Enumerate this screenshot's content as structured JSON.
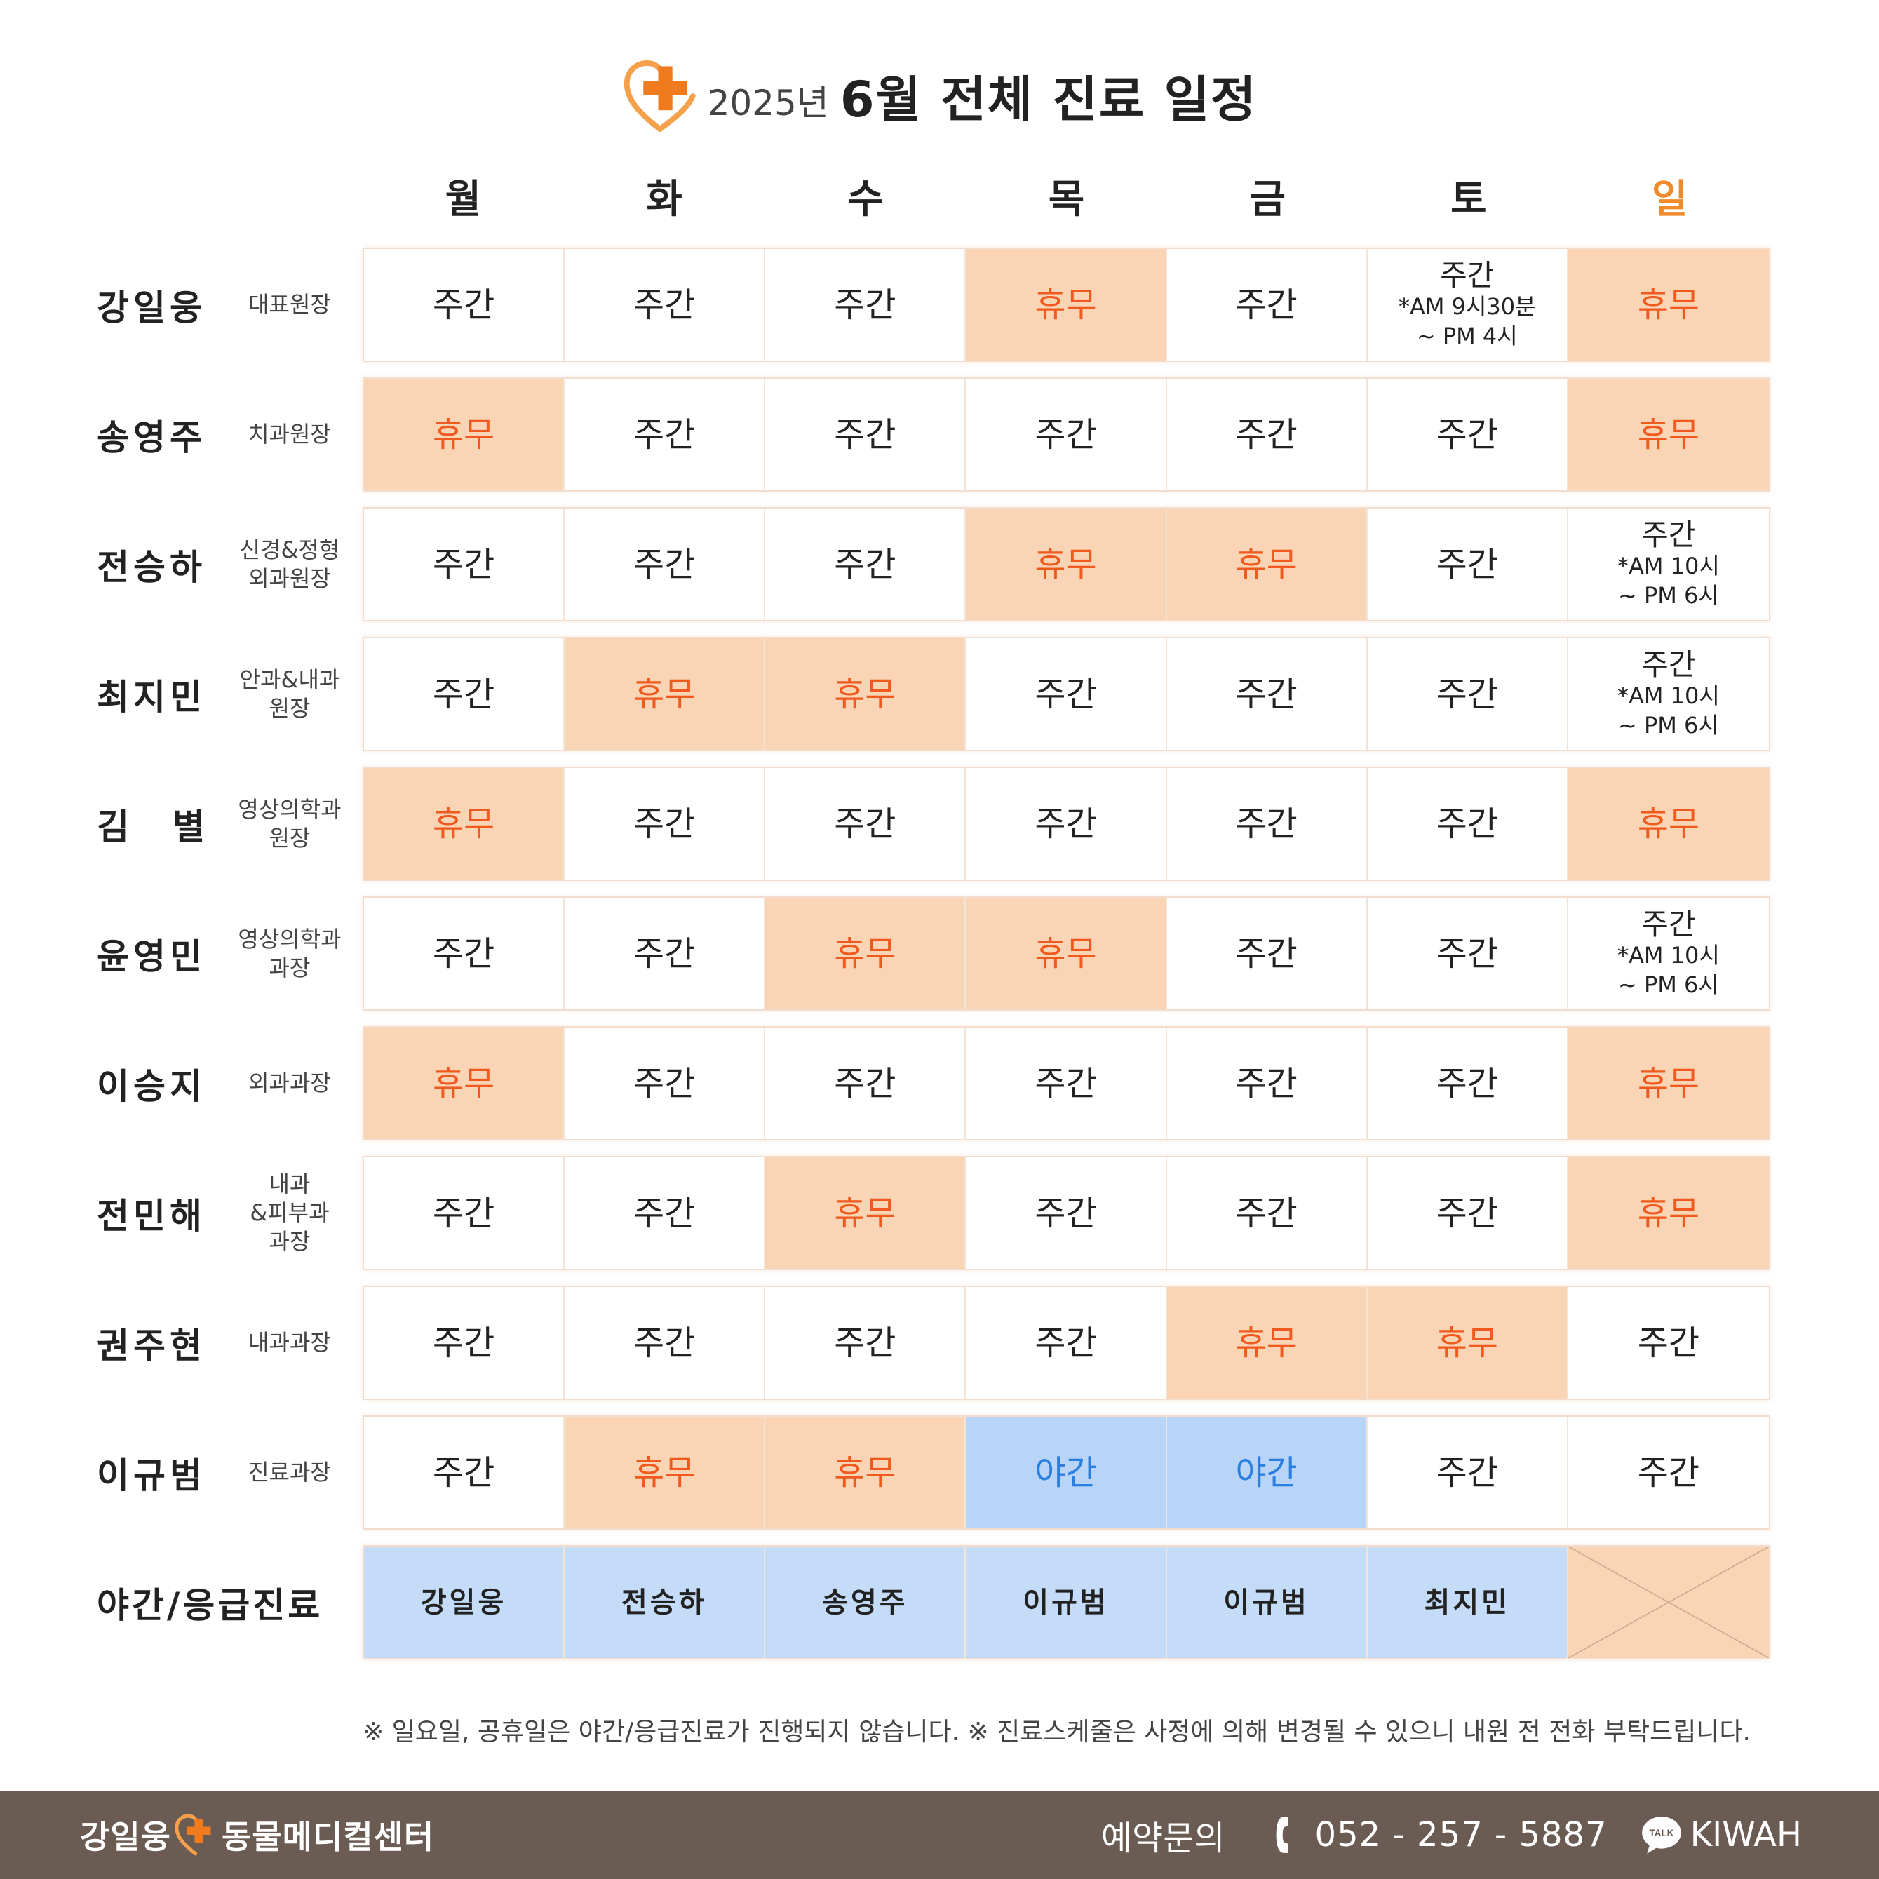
{
  "header": {
    "year": "2025년",
    "title": "6월 전체 진료 일정"
  },
  "days": [
    {
      "label": "월"
    },
    {
      "label": "화"
    },
    {
      "label": "수"
    },
    {
      "label": "목"
    },
    {
      "label": "금"
    },
    {
      "label": "토"
    },
    {
      "label": "일"
    }
  ],
  "rows": [
    {
      "name": "강일웅",
      "role": "대표원장",
      "cells": [
        {
          "main": "주간"
        },
        {
          "main": "주간"
        },
        {
          "main": "주간"
        },
        {
          "main": "휴무"
        },
        {
          "main": "주간"
        },
        {
          "main": "주간",
          "sub": "*AM 9시30분\n~ PM 4시"
        },
        {
          "main": "휴무"
        }
      ]
    },
    {
      "name": "송영주",
      "role": "치과원장",
      "cells": [
        {
          "main": "휴무"
        },
        {
          "main": "주간"
        },
        {
          "main": "주간"
        },
        {
          "main": "주간"
        },
        {
          "main": "주간"
        },
        {
          "main": "주간"
        },
        {
          "main": "휴무"
        }
      ]
    },
    {
      "name": "전승하",
      "role": "신경&정형\n외과원장",
      "cells": [
        {
          "main": "주간"
        },
        {
          "main": "주간"
        },
        {
          "main": "주간"
        },
        {
          "main": "휴무"
        },
        {
          "main": "휴무"
        },
        {
          "main": "주간"
        },
        {
          "main": "주간",
          "sub": "*AM 10시\n~ PM 6시"
        }
      ]
    },
    {
      "name": "최지민",
      "role": "안과&내과\n원장",
      "cells": [
        {
          "main": "주간"
        },
        {
          "main": "휴무"
        },
        {
          "main": "휴무"
        },
        {
          "main": "주간"
        },
        {
          "main": "주간"
        },
        {
          "main": "주간"
        },
        {
          "main": "주간",
          "sub": "*AM 10시\n~ PM 6시"
        }
      ]
    },
    {
      "name": "김　별",
      "role": "영상의학과\n원장",
      "cells": [
        {
          "main": "휴무"
        },
        {
          "main": "주간"
        },
        {
          "main": "주간"
        },
        {
          "main": "주간"
        },
        {
          "main": "주간"
        },
        {
          "main": "주간"
        },
        {
          "main": "휴무"
        }
      ]
    },
    {
      "name": "윤영민",
      "role": "영상의학과\n과장",
      "cells": [
        {
          "main": "주간"
        },
        {
          "main": "주간"
        },
        {
          "main": "휴무"
        },
        {
          "main": "휴무"
        },
        {
          "main": "주간"
        },
        {
          "main": "주간"
        },
        {
          "main": "주간",
          "sub": "*AM 10시\n~ PM 6시"
        }
      ]
    },
    {
      "name": "이승지",
      "role": "외과과장",
      "cells": [
        {
          "main": "휴무"
        },
        {
          "main": "주간"
        },
        {
          "main": "주간"
        },
        {
          "main": "주간"
        },
        {
          "main": "주간"
        },
        {
          "main": "주간"
        },
        {
          "main": "휴무"
        }
      ]
    },
    {
      "name": "전민해",
      "role": "내과\n&피부과\n과장",
      "cells": [
        {
          "main": "주간"
        },
        {
          "main": "주간"
        },
        {
          "main": "휴무"
        },
        {
          "main": "주간"
        },
        {
          "main": "주간"
        },
        {
          "main": "주간"
        },
        {
          "main": "휴무"
        }
      ]
    },
    {
      "name": "권주현",
      "role": "내과과장",
      "cells": [
        {
          "main": "주간"
        },
        {
          "main": "주간"
        },
        {
          "main": "주간"
        },
        {
          "main": "주간"
        },
        {
          "main": "휴무"
        },
        {
          "main": "휴무"
        },
        {
          "main": "주간"
        }
      ]
    },
    {
      "name": "이규범",
      "role": "진료과장",
      "cells": [
        {
          "main": "주간"
        },
        {
          "main": "휴무"
        },
        {
          "main": "휴무"
        },
        {
          "main": "야간"
        },
        {
          "main": "야간"
        },
        {
          "main": "주간"
        },
        {
          "main": "주간"
        }
      ]
    }
  ],
  "emergency": {
    "label": "야간/응급진료",
    "cells": [
      "강일웅",
      "전승하",
      "송영주",
      "이규범",
      "이규범",
      "최지민"
    ]
  },
  "note": "※ 일요일, 공휴일은 야간/응급진료가 진행되지 않습니다.  ※ 진료스케줄은 사정에 의해 변경될 수 있으니 내원 전 전화 부탁드립니다.",
  "footer": {
    "brand_left": "강일웅",
    "brand_right": "동물메디컬센터",
    "contact_label": "예약문의",
    "phone": "052 - 257 - 5887",
    "kakao_badge": "TALK",
    "kakao_id": "KIWAH"
  },
  "colors": {
    "accent": "#f08a2a",
    "off_bg": "#f9d5b6",
    "off_text": "#f05a1e",
    "night_bg": "#b8d5f8",
    "night_text": "#2b7fe0",
    "footer_bg": "#6a5b53"
  }
}
